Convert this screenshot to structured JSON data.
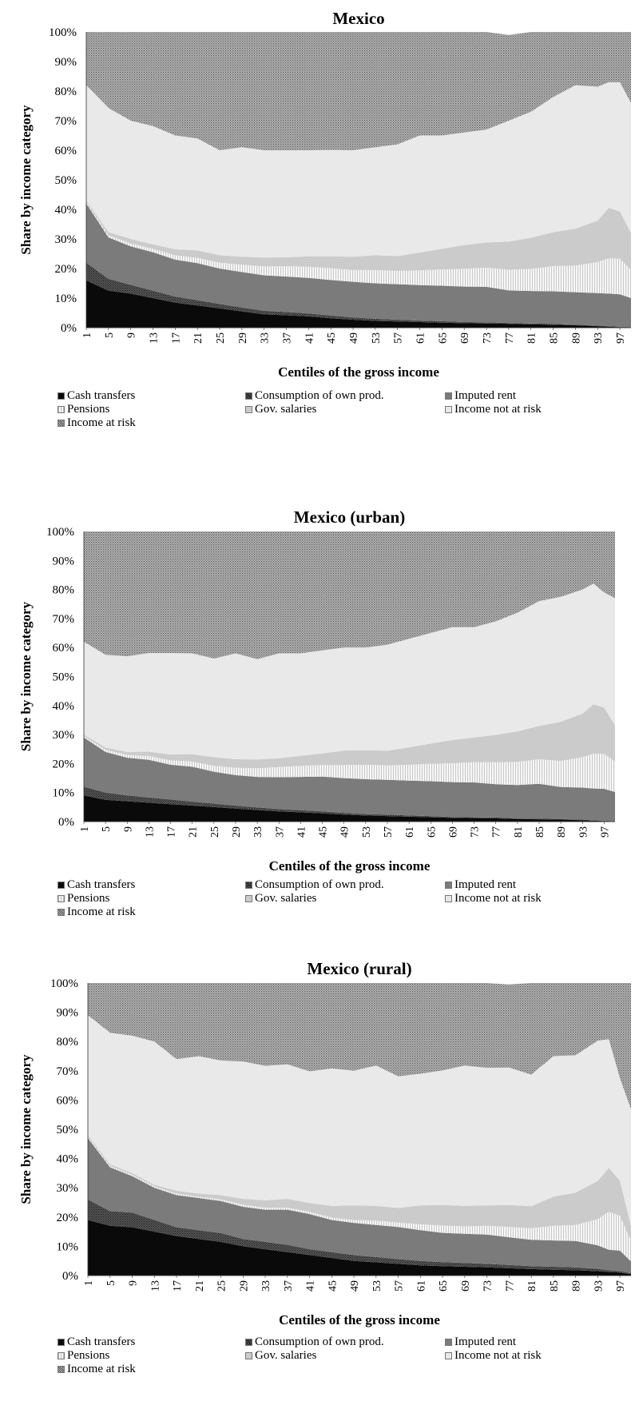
{
  "legend_colors": {
    "Cash transfers": "#0a0a0a",
    "Consumption of own prod.": "#3c3c3c",
    "Imputed rent": "#7b7b7b",
    "Pensions": "#f1f1f1",
    "Gov. salaries": "#cbcbcb",
    "Income not at risk": "#e9e9e9",
    "Income at risk": "#a6a6a6"
  },
  "chart_data": [
    {
      "type": "area",
      "stacked": true,
      "title": "Mexico",
      "xlabel": "Centiles of the gross income",
      "ylabel": "Share by income category",
      "ylim": [
        0,
        100
      ],
      "y_unit": "%",
      "y_ticks": [
        "0%",
        "10%",
        "20%",
        "30%",
        "40%",
        "50%",
        "60%",
        "70%",
        "80%",
        "90%",
        "100%"
      ],
      "x_ticks": [
        "1",
        "5",
        "9",
        "13",
        "17",
        "21",
        "25",
        "29",
        "33",
        "37",
        "41",
        "45",
        "49",
        "53",
        "57",
        "61",
        "65",
        "69",
        "73",
        "77",
        "81",
        "85",
        "89",
        "93",
        "97"
      ],
      "x": [
        1,
        5,
        9,
        13,
        17,
        21,
        25,
        29,
        33,
        37,
        41,
        45,
        49,
        53,
        57,
        61,
        65,
        69,
        73,
        77,
        81,
        85,
        89,
        93,
        95,
        97,
        99
      ],
      "legend_position": "bottom",
      "series": [
        {
          "name": "Cash transfers",
          "values": [
            16,
            12.5,
            11.5,
            10,
            8.5,
            7.5,
            6.5,
            5.5,
            4.5,
            4.2,
            3.8,
            3.2,
            2.7,
            2.3,
            2.1,
            1.9,
            1.7,
            1.5,
            1.4,
            1.3,
            1.1,
            1,
            0.8,
            0.5,
            0.3,
            0.2,
            0.1
          ]
        },
        {
          "name": "Consumption of own prod.",
          "values": [
            6,
            4,
            3,
            2.5,
            2,
            1.8,
            1.5,
            1.3,
            1.2,
            1.1,
            1,
            0.9,
            0.8,
            0.7,
            0.6,
            0.5,
            0.5,
            0.4,
            0.4,
            0.3,
            0.3,
            0.3,
            0.2,
            0.2,
            0.2,
            0.1,
            0.1
          ]
        },
        {
          "name": "Imputed rent",
          "values": [
            20,
            14,
            13,
            13,
            12.5,
            12.5,
            12,
            12,
            12,
            12,
            12,
            12,
            12,
            12,
            12,
            12,
            12,
            12,
            12,
            11,
            11,
            11,
            11,
            11,
            11,
            11,
            9.8
          ]
        },
        {
          "name": "Pensions",
          "values": [
            0.5,
            0.8,
            1,
            1.2,
            1.5,
            1.8,
            2,
            2.5,
            3,
            3.5,
            3.8,
            4,
            4,
            4.5,
            4.5,
            5,
            5.5,
            6,
            6.5,
            7,
            7.5,
            8.5,
            9,
            10.5,
            12,
            12,
            9.5
          ]
        },
        {
          "name": "Gov. salaries",
          "values": [
            0.5,
            1,
            1.5,
            1.5,
            2,
            2.5,
            2.5,
            2.7,
            3,
            3,
            3.5,
            4,
            4.5,
            5,
            5,
            6,
            7,
            8,
            8.5,
            9.5,
            10.5,
            11.5,
            12.5,
            14,
            17,
            16,
            12.5
          ]
        },
        {
          "name": "Income not at risk",
          "values": [
            39,
            42,
            40,
            40,
            38.5,
            37.9,
            35.5,
            37,
            36.3,
            36.2,
            35.9,
            36,
            36,
            36.5,
            37.8,
            39.6,
            38.3,
            38.1,
            38.2,
            40.9,
            42.6,
            45.7,
            48.5,
            45.3,
            42.5,
            43.7,
            44
          ]
        },
        {
          "name": "Income at risk",
          "values": [
            18,
            25.7,
            30,
            31.8,
            35,
            36,
            40,
            39,
            40,
            40,
            40,
            39.9,
            40,
            39,
            38,
            35,
            35,
            34,
            33,
            29,
            27,
            22,
            18,
            18.5,
            17,
            17,
            24
          ]
        }
      ]
    },
    {
      "type": "area",
      "stacked": true,
      "title": "Mexico (urban)",
      "xlabel": "Centiles of the gross income",
      "ylabel": "Share by income category",
      "ylim": [
        0,
        100
      ],
      "y_unit": "%",
      "y_ticks": [
        "0%",
        "10%",
        "20%",
        "30%",
        "40%",
        "50%",
        "60%",
        "70%",
        "80%",
        "90%",
        "100%"
      ],
      "x_ticks": [
        "1",
        "5",
        "9",
        "13",
        "17",
        "21",
        "25",
        "29",
        "33",
        "37",
        "41",
        "45",
        "49",
        "53",
        "57",
        "61",
        "65",
        "69",
        "73",
        "77",
        "81",
        "85",
        "89",
        "93",
        "97"
      ],
      "x": [
        1,
        5,
        9,
        13,
        17,
        21,
        25,
        29,
        33,
        37,
        41,
        45,
        49,
        53,
        57,
        61,
        65,
        69,
        73,
        77,
        81,
        85,
        89,
        93,
        95,
        97,
        99
      ],
      "legend_position": "bottom",
      "series": [
        {
          "name": "Cash transfers",
          "values": [
            9,
            7.5,
            7,
            6.5,
            6,
            5.5,
            5,
            4.5,
            4,
            3.5,
            3.2,
            2.8,
            2.4,
            2.1,
            1.9,
            1.7,
            1.5,
            1.3,
            1.2,
            1.1,
            0.9,
            0.8,
            0.7,
            0.5,
            0.3,
            0.2,
            0.1
          ]
        },
        {
          "name": "Consumption of own prod.",
          "values": [
            3,
            2.5,
            2,
            1.8,
            1.6,
            1.4,
            1.2,
            1,
            0.9,
            0.8,
            0.7,
            0.7,
            0.6,
            0.5,
            0.5,
            0.4,
            0.4,
            0.3,
            0.3,
            0.3,
            0.2,
            0.2,
            0.2,
            0.2,
            0.1,
            0.1,
            0.1
          ]
        },
        {
          "name": "Imputed rent",
          "values": [
            17,
            14,
            13,
            13,
            12,
            12,
            11,
            10.5,
            10.5,
            11,
            11.5,
            12,
            12,
            12,
            12,
            12,
            12,
            12,
            12,
            11.5,
            11.5,
            12,
            11,
            11,
            11,
            11,
            10
          ]
        },
        {
          "name": "Pensions",
          "values": [
            0.5,
            0.8,
            1,
            1.3,
            1.5,
            1.8,
            2,
            2.5,
            3,
            3.5,
            3.8,
            4,
            4.5,
            5,
            5,
            5.5,
            6,
            6.5,
            7,
            7.5,
            8,
            8.5,
            9,
            10.5,
            12,
            12,
            10.5
          ]
        },
        {
          "name": "Gov. salaries",
          "values": [
            0.5,
            0.7,
            1,
            1.5,
            2,
            2.5,
            3,
            3,
            3,
            3,
            3.5,
            4,
            5,
            5,
            5,
            6,
            7,
            8,
            8.5,
            9.5,
            10.5,
            11.5,
            13.5,
            15,
            17,
            16,
            12.5
          ]
        },
        {
          "name": "Income not at risk",
          "values": [
            32,
            32,
            33,
            34,
            35,
            34.8,
            34,
            36.5,
            34.6,
            36.2,
            35.3,
            35.5,
            35.5,
            35.4,
            36.6,
            37.4,
            38.1,
            38.9,
            38,
            39.1,
            40.9,
            43,
            43.1,
            42.8,
            41.6,
            39.7,
            43.8
          ]
        },
        {
          "name": "Income at risk",
          "values": [
            38,
            42.5,
            43,
            41.9,
            41.9,
            42,
            43.8,
            42,
            44,
            42,
            42,
            41,
            40,
            40,
            39,
            37,
            35,
            33,
            33,
            31,
            28,
            24,
            22.5,
            20,
            18,
            21,
            23
          ]
        }
      ]
    },
    {
      "type": "area",
      "stacked": true,
      "title": "Mexico (rural)",
      "xlabel": "Centiles of the gross income",
      "ylabel": "Share by income category",
      "ylim": [
        0,
        100
      ],
      "y_unit": "%",
      "y_ticks": [
        "0%",
        "10%",
        "20%",
        "30%",
        "40%",
        "50%",
        "60%",
        "70%",
        "80%",
        "90%",
        "100%"
      ],
      "x_ticks": [
        "1",
        "5",
        "9",
        "13",
        "17",
        "21",
        "25",
        "29",
        "33",
        "37",
        "41",
        "45",
        "49",
        "53",
        "57",
        "61",
        "65",
        "69",
        "73",
        "77",
        "81",
        "85",
        "89",
        "93",
        "97"
      ],
      "x": [
        1,
        5,
        9,
        13,
        17,
        21,
        25,
        29,
        33,
        37,
        41,
        45,
        49,
        53,
        57,
        61,
        65,
        69,
        73,
        77,
        81,
        85,
        89,
        93,
        95,
        97,
        99
      ],
      "legend_position": "bottom",
      "series": [
        {
          "name": "Cash transfers",
          "values": [
            19,
            17,
            16.5,
            15,
            13.5,
            12.5,
            11.5,
            10,
            9,
            8,
            7,
            6,
            5,
            4.5,
            4,
            3.5,
            3.2,
            3,
            2.8,
            2.5,
            2.2,
            2,
            1.8,
            1.5,
            1.2,
            1,
            0.5
          ]
        },
        {
          "name": "Consumption of own prod.",
          "values": [
            7,
            5,
            5,
            4,
            3,
            3,
            3,
            2.5,
            2.5,
            2.5,
            2,
            2,
            2,
            1.8,
            1.6,
            1.5,
            1.4,
            1.3,
            1.2,
            1.1,
            1,
            1,
            1,
            0.8,
            0.6,
            0.5,
            0.3
          ]
        },
        {
          "name": "Imputed rent",
          "values": [
            21,
            15,
            12.5,
            11,
            11,
            11,
            11,
            11,
            11,
            12,
            12,
            11,
            11,
            11,
            11,
            10.5,
            10,
            10,
            10,
            9.5,
            9,
            9,
            9,
            8,
            7,
            7,
            4
          ]
        },
        {
          "name": "Pensions",
          "values": [
            0.5,
            0.5,
            0.5,
            0.5,
            0.5,
            0.5,
            0.5,
            0.7,
            0.7,
            0.7,
            0.8,
            0.8,
            1,
            1.5,
            1.5,
            2,
            2.5,
            2.5,
            3,
            3.5,
            4,
            5,
            5.5,
            9,
            13,
            12,
            7
          ]
        },
        {
          "name": "Gov. salaries",
          "values": [
            0.5,
            0.5,
            0.5,
            0.5,
            1,
            1,
            1.5,
            2,
            2.5,
            3,
            3,
            4,
            5,
            5,
            5,
            6.5,
            7,
            7,
            7,
            7.5,
            7.5,
            10,
            11,
            13,
            15,
            12,
            5
          ]
        },
        {
          "name": "Income not at risk",
          "values": [
            41,
            45,
            47,
            49,
            45,
            47,
            46,
            47,
            46,
            46,
            45,
            47,
            46,
            48,
            45,
            45,
            46,
            48,
            47,
            47,
            45,
            48,
            47,
            48,
            44,
            35,
            40
          ]
        },
        {
          "name": "Income at risk",
          "values": [
            11,
            17,
            18,
            20,
            26,
            25,
            26.5,
            26.8,
            28.3,
            27.8,
            30.2,
            29.2,
            30,
            28.2,
            31.9,
            31,
            29.9,
            28.2,
            29,
            28.4,
            31.3,
            25,
            24.7,
            19.7,
            19.2,
            32.5,
            43.2
          ]
        }
      ]
    }
  ]
}
